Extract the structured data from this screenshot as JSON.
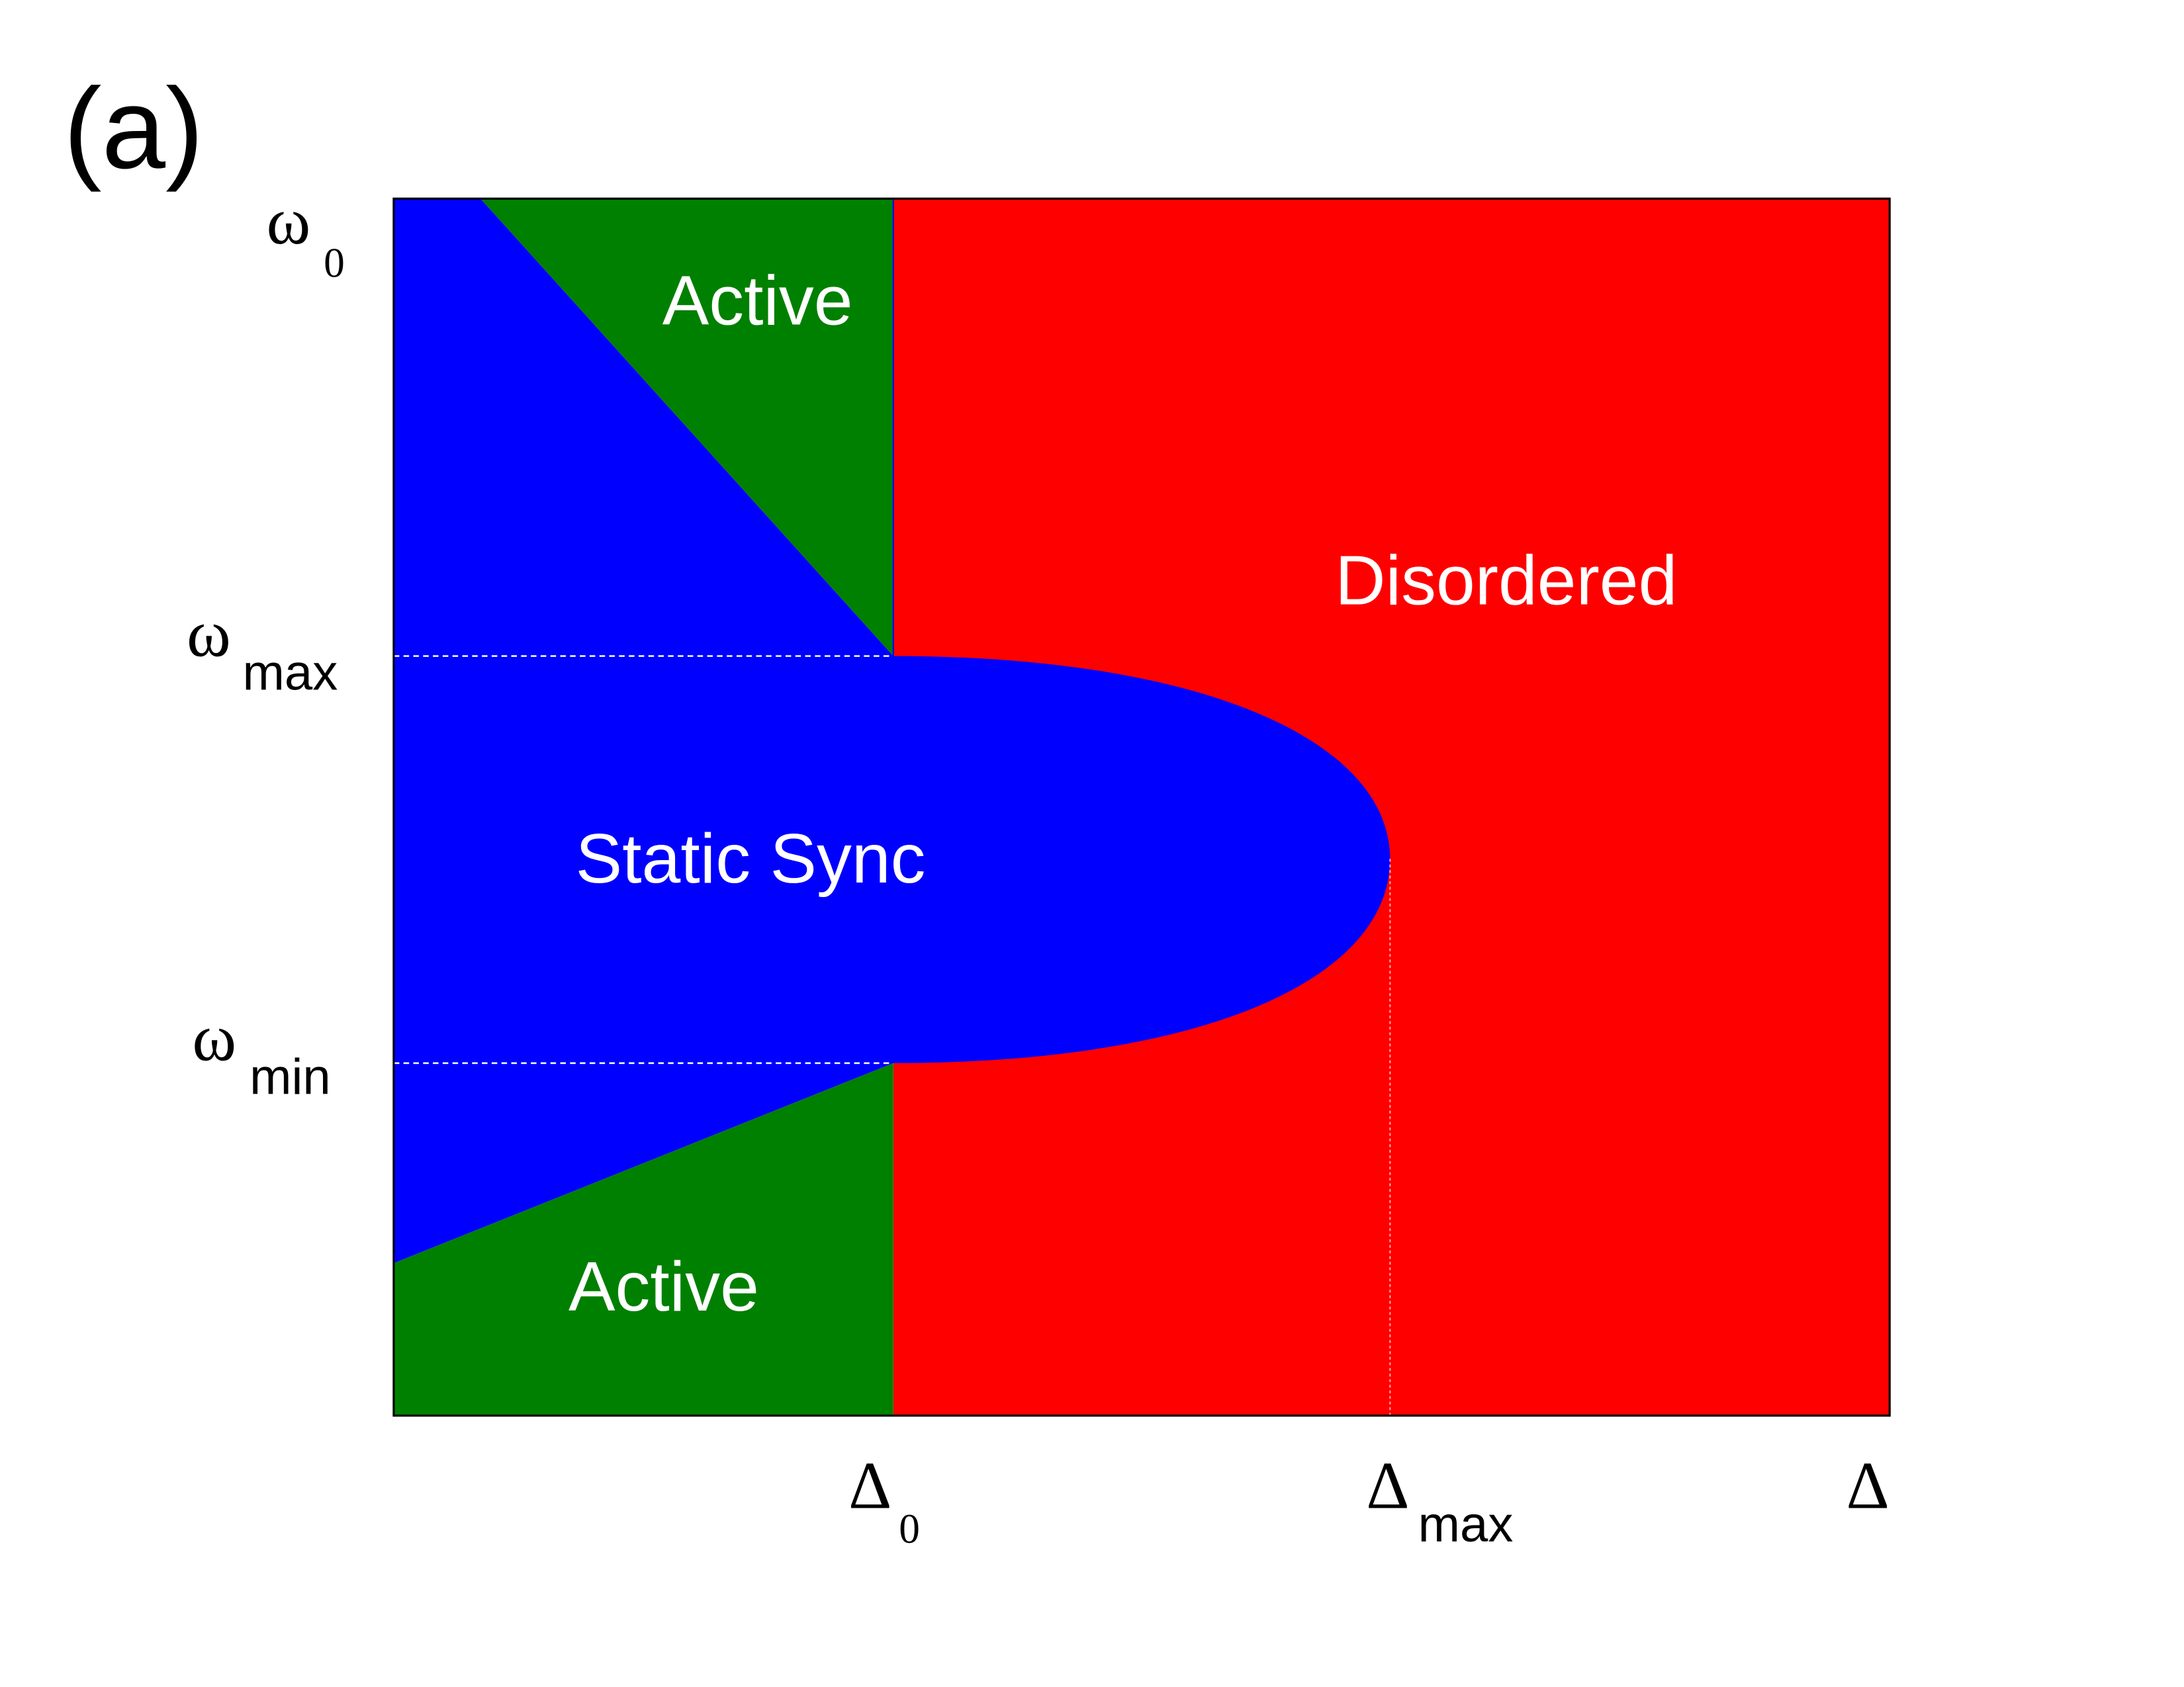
{
  "panel_label": "(a)",
  "regions": {
    "active_top": "Active",
    "active_bottom": "Active",
    "static_sync": "Static Sync",
    "disordered": "Disordered"
  },
  "y_ticks": {
    "omega0": {
      "symbol": "ω",
      "sub": "0"
    },
    "omega_max": {
      "symbol": "ω",
      "sub": "max"
    },
    "omega_min": {
      "symbol": "ω",
      "sub": "min"
    }
  },
  "x_ticks": {
    "delta0": {
      "symbol": "Δ",
      "sub": "0"
    },
    "delta_max": {
      "symbol": "Δ",
      "sub": "max"
    },
    "delta": {
      "symbol": "Δ"
    }
  },
  "colors": {
    "static_sync": "#0000ff",
    "active": "#008000",
    "disordered": "#ff0000",
    "axes": "#000000",
    "region_text": "#ffffff"
  }
}
